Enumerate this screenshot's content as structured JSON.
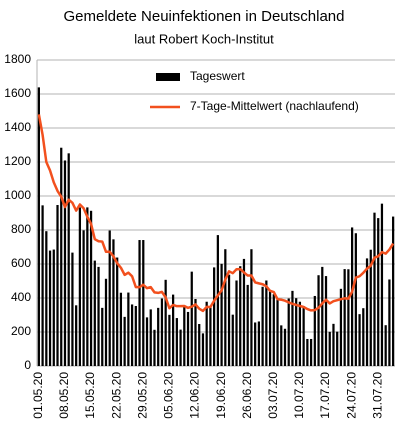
{
  "chart_data": {
    "type": "bar",
    "title": "Gemeldete Neuinfektionen in Deutschland",
    "subtitle": "laut Robert Koch-Institut",
    "categories": [
      "01.05.20",
      null,
      null,
      null,
      null,
      null,
      null,
      "08.05.20",
      null,
      null,
      null,
      null,
      null,
      null,
      "15.05.20",
      null,
      null,
      null,
      null,
      null,
      null,
      "22.05.20",
      null,
      null,
      null,
      null,
      null,
      null,
      "29.05.20",
      null,
      null,
      null,
      null,
      null,
      null,
      "05.06.20",
      null,
      null,
      null,
      null,
      null,
      null,
      "12.06.20",
      null,
      null,
      null,
      null,
      null,
      null,
      "19.06.20",
      null,
      null,
      null,
      null,
      null,
      null,
      "26.06.20",
      null,
      null,
      null,
      null,
      null,
      null,
      "03.07.20",
      null,
      null,
      null,
      null,
      null,
      null,
      "10.07.20",
      null,
      null,
      null,
      null,
      null,
      null,
      "17.07.20",
      null,
      null,
      null,
      null,
      null,
      null,
      "24.07.20",
      null,
      null,
      null,
      null,
      null,
      null,
      "31.07.20",
      null,
      null,
      null,
      null
    ],
    "series": [
      {
        "name": "Tageswert",
        "mark": "bar",
        "color": "#000000",
        "values": [
          1639,
          945,
          793,
          679,
          685,
          947,
          1284,
          1209,
          1251,
          667,
          357,
          933,
          798,
          933,
          913,
          620,
          583,
          342,
          513,
          797,
          745,
          638,
          431,
          289,
          432,
          362,
          353,
          741,
          741,
          286,
          333,
          213,
          342,
          397,
          507,
          301,
          420,
          282,
          214,
          350,
          318,
          555,
          394,
          247,
          192,
          378,
          345,
          580,
          770,
          601,
          687,
          537,
          302,
          503,
          587,
          630,
          477,
          687,
          256,
          262,
          466,
          503,
          446,
          422,
          395,
          239,
          219,
          397,
          442,
          399,
          378,
          352,
          159,
          159,
          412,
          534,
          583,
          529,
          201,
          248,
          202,
          454,
          570,
          569,
          815,
          781,
          305,
          340,
          633,
          684,
          902,
          870,
          955,
          240,
          509,
          879
        ]
      },
      {
        "name": "7-Tage-Mittelwert (nachlaufend)",
        "mark": "line",
        "color": "#f2501e",
        "values": [
          1480,
          1360,
          1200,
          1150,
          1080,
          1030,
          996,
          935,
          978,
          960,
          914,
          950,
          928,
          878,
          836,
          746,
          734,
          732,
          672,
          672,
          645,
          605,
          578,
          536,
          549,
          528,
          464,
          464,
          478,
          458,
          464,
          433,
          430,
          436,
          403,
          340,
          359,
          352,
          352,
          353,
          342,
          349,
          362,
          337,
          324,
          348,
          347,
          384,
          415,
          445,
          508,
          557,
          546,
          569,
          570,
          550,
          532,
          532,
          492,
          486,
          481,
          469,
          442,
          435,
          393,
          390,
          384,
          374,
          366,
          359,
          353,
          347,
          335,
          327,
          329,
          342,
          368,
          390,
          368,
          381,
          387,
          393,
          398,
          396,
          437,
          520,
          528,
          548,
          573,
          590,
          637,
          645,
          670,
          661,
          685,
          720
        ]
      }
    ],
    "ylim": [
      0,
      1800
    ],
    "yticks": [
      0,
      200,
      400,
      600,
      800,
      1000,
      1200,
      1400,
      1600,
      1800
    ],
    "grid": true,
    "legend": "top-right"
  }
}
